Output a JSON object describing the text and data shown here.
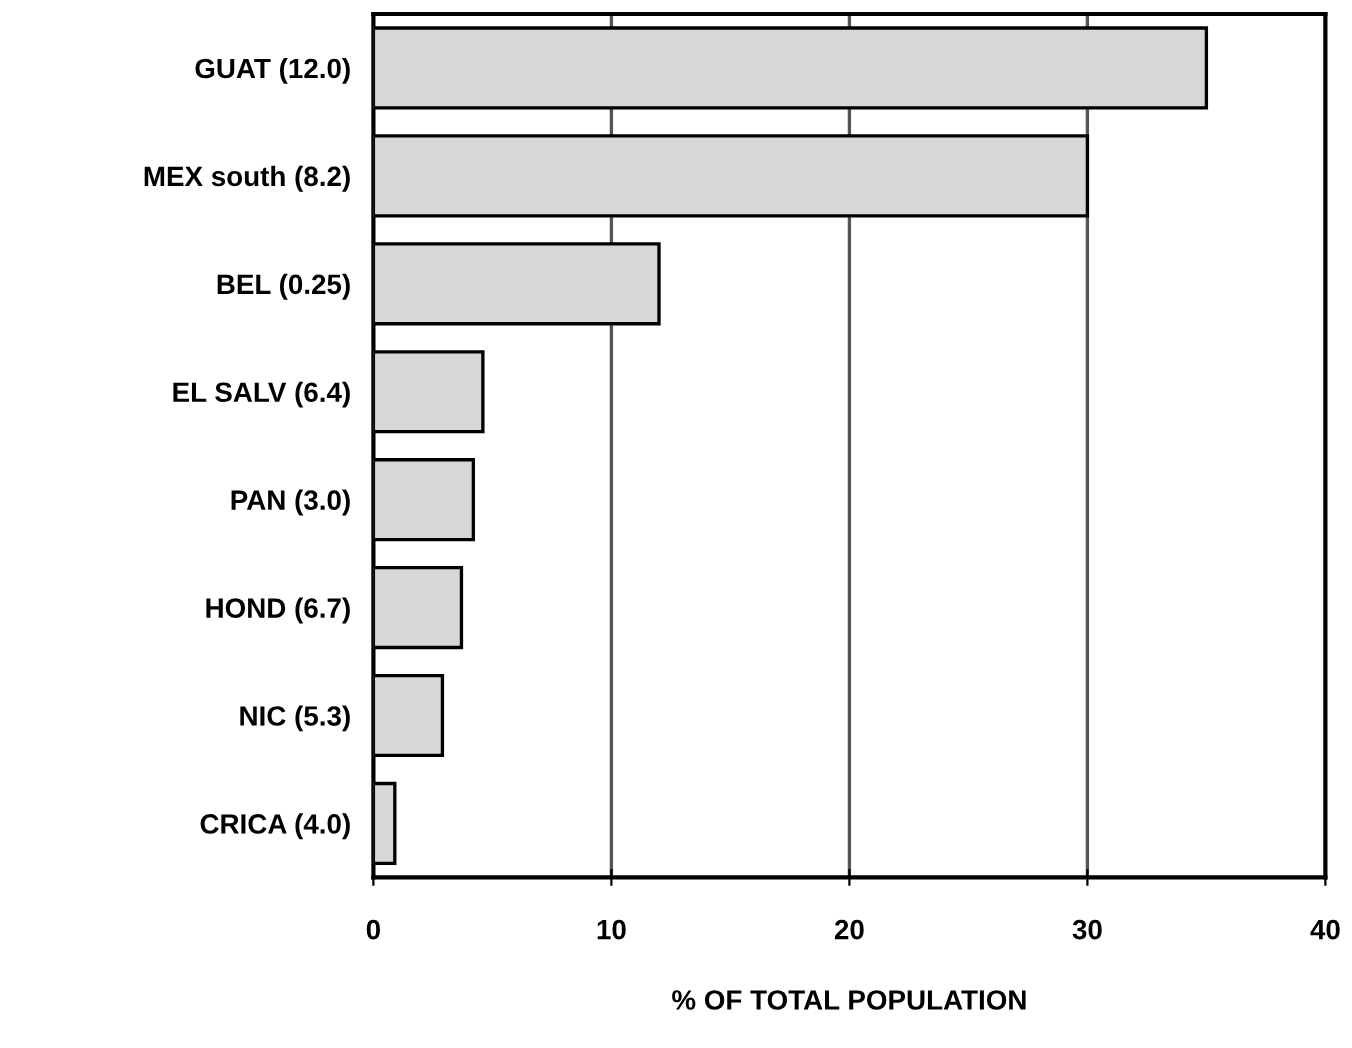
{
  "chart_data": {
    "type": "bar",
    "orientation": "horizontal",
    "xlabel": "% OF TOTAL POPULATION",
    "categories": [
      "GUAT (12.0)",
      "MEX south (8.2)",
      "BEL (0.25)",
      "EL SALV (6.4)",
      "PAN (3.0)",
      "HOND (6.7)",
      "NIC (5.3)",
      "CRICA (4.0)"
    ],
    "values": [
      35,
      30,
      12,
      4.6,
      4.2,
      3.7,
      2.9,
      0.9
    ],
    "color": "#d6d7d9",
    "xlim": [
      0,
      40
    ],
    "xticks": [
      0,
      10,
      20,
      30,
      40
    ],
    "grid": "x"
  }
}
